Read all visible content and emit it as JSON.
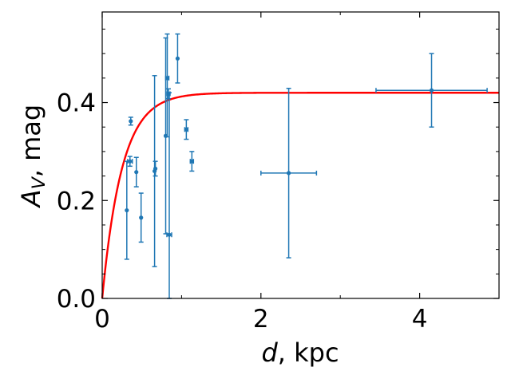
{
  "chart_data": {
    "type": "scatter",
    "xlabel_var": "d",
    "xlabel_unit": ", kpc",
    "ylabel_var": "A",
    "ylabel_sub": "V",
    "ylabel_unit": ", mag",
    "xlim": [
      0,
      5
    ],
    "ylim": [
      0,
      0.585
    ],
    "x_ticks": [
      0,
      2,
      4
    ],
    "x_tick_labels": [
      "0",
      "2",
      "4"
    ],
    "x_minor_ticks": [
      1,
      3
    ],
    "y_ticks": [
      0,
      0.2,
      0.4
    ],
    "y_tick_labels": [
      "0.0",
      "0.2",
      "0.4"
    ],
    "y_minor_ticks": [
      0.05,
      0.1,
      0.15,
      0.25,
      0.3,
      0.35,
      0.45,
      0.5,
      0.55
    ],
    "grid": false,
    "series": [
      {
        "type": "errorbar",
        "color": "#1f77b4",
        "points": [
          {
            "x": 0.31,
            "y": 0.18,
            "yerr_low": 0.1,
            "yerr_high": 0.1,
            "xerr": 0.0
          },
          {
            "x": 0.35,
            "y": 0.28,
            "yerr_low": 0.01,
            "yerr_high": 0.01,
            "xerr": 0.03
          },
          {
            "x": 0.36,
            "y": 0.362,
            "yerr_low": 0.008,
            "yerr_high": 0.008,
            "xerr": 0.0
          },
          {
            "x": 0.43,
            "y": 0.258,
            "yerr_low": 0.03,
            "yerr_high": 0.03,
            "xerr": 0.0
          },
          {
            "x": 0.49,
            "y": 0.165,
            "yerr_low": 0.05,
            "yerr_high": 0.05,
            "xerr": 0.0
          },
          {
            "x": 0.66,
            "y": 0.26,
            "yerr_low": 0.195,
            "yerr_high": 0.195,
            "xerr": 0.0
          },
          {
            "x": 0.67,
            "y": 0.265,
            "yerr_low": 0.015,
            "yerr_high": 0.015,
            "xerr": 0.0
          },
          {
            "x": 0.8,
            "y": 0.332,
            "yerr_low": 0.2,
            "yerr_high": 0.2,
            "xerr": 0.0
          },
          {
            "x": 0.82,
            "y": 0.45,
            "yerr_low": 0.12,
            "yerr_high": 0.09,
            "xerr": 0.02
          },
          {
            "x": 0.835,
            "y": 0.418,
            "yerr_low": 0.01,
            "yerr_high": 0.01,
            "xerr": 0.02
          },
          {
            "x": 0.845,
            "y": 0.13,
            "yerr_low": 0.13,
            "yerr_high": 0.29,
            "xerr": 0.03
          },
          {
            "x": 0.95,
            "y": 0.49,
            "yerr_low": 0.05,
            "yerr_high": 0.05,
            "xerr": 0.0
          },
          {
            "x": 1.06,
            "y": 0.345,
            "yerr_low": 0.02,
            "yerr_high": 0.02,
            "xerr": 0.02
          },
          {
            "x": 1.13,
            "y": 0.28,
            "yerr_low": 0.02,
            "yerr_high": 0.02,
            "xerr": 0.02
          },
          {
            "x": 2.35,
            "y": 0.256,
            "yerr_low": 0.173,
            "yerr_high": 0.173,
            "xerr": 0.35
          },
          {
            "x": 4.15,
            "y": 0.425,
            "yerr_low": 0.075,
            "yerr_high": 0.075,
            "xerr": 0.7
          }
        ]
      },
      {
        "type": "line",
        "color": "#ff0000",
        "model": "A0*(1-exp(-d/d0))",
        "A0": 0.42,
        "d0": 0.25
      }
    ]
  }
}
